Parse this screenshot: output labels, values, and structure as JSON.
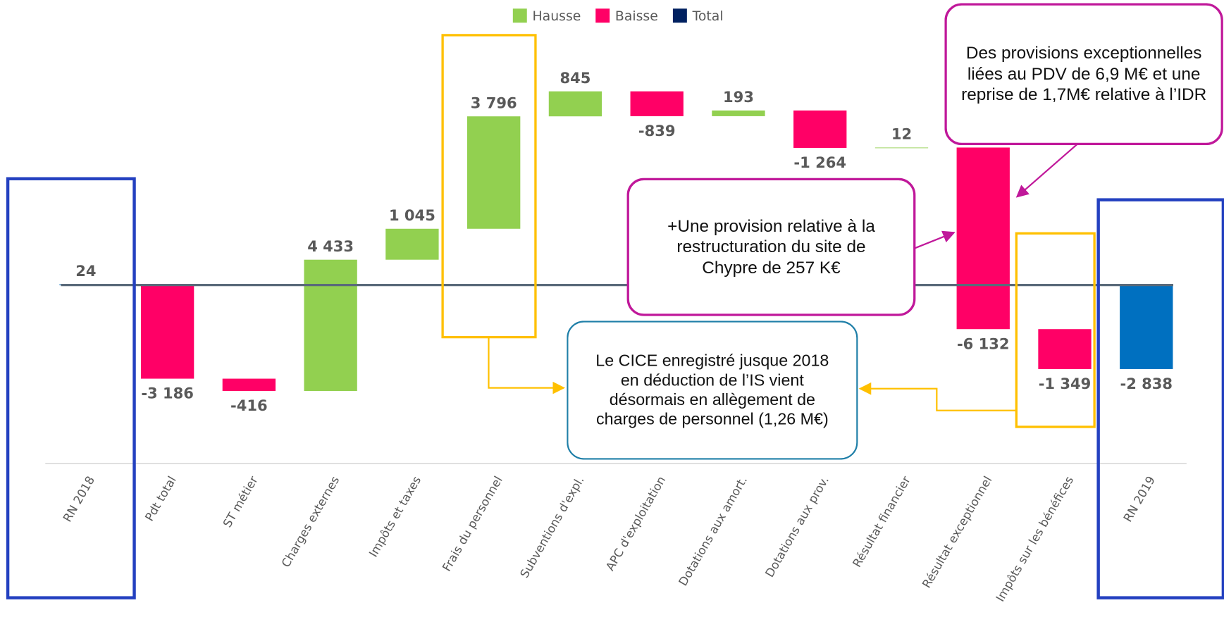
{
  "chart_data": {
    "type": "waterfall",
    "categories": [
      "RN 2018",
      "Pdt total",
      "ST métier",
      "Charges externes",
      "Impôts et taxes",
      "Frais du personnel",
      "Subventions d'expl.",
      "APC d'exploitation",
      "Dotations aux amort.",
      "Dotations aux prov.",
      "Résultat financier",
      "Résultat exceptionnel",
      "Impôts sur les bénéfices",
      "RN 2019"
    ],
    "values": [
      24,
      -3186,
      -416,
      4433,
      1045,
      3796,
      845,
      -839,
      193,
      -1264,
      12,
      -6132,
      -1349,
      -2838
    ],
    "value_labels": [
      "24",
      "-3 186",
      "-416",
      "4 433",
      "1 045",
      "3 796",
      "845",
      "-839",
      "193",
      "-1 264",
      "12",
      "-6 132",
      "-1 349",
      "-2 838"
    ],
    "legend": [
      {
        "name": "Hausse",
        "color": "#92d050"
      },
      {
        "name": "Baisse",
        "color": "#ff0066"
      },
      {
        "name": "Total",
        "color": "#002060"
      }
    ],
    "total_color": "#0070c0",
    "annotations": [
      "Des provisions exceptionnelles liées au PDV de 6,9 M€ et une reprise de 1,7M€ relative à l’IDR",
      "+Une provision relative à la restructuration du site de Chypre de 257 K€",
      "Le CICE enregistré jusque 2018 en déduction de l’IS vient désormais en allègement de charges de personnel (1,26 M€)"
    ]
  }
}
